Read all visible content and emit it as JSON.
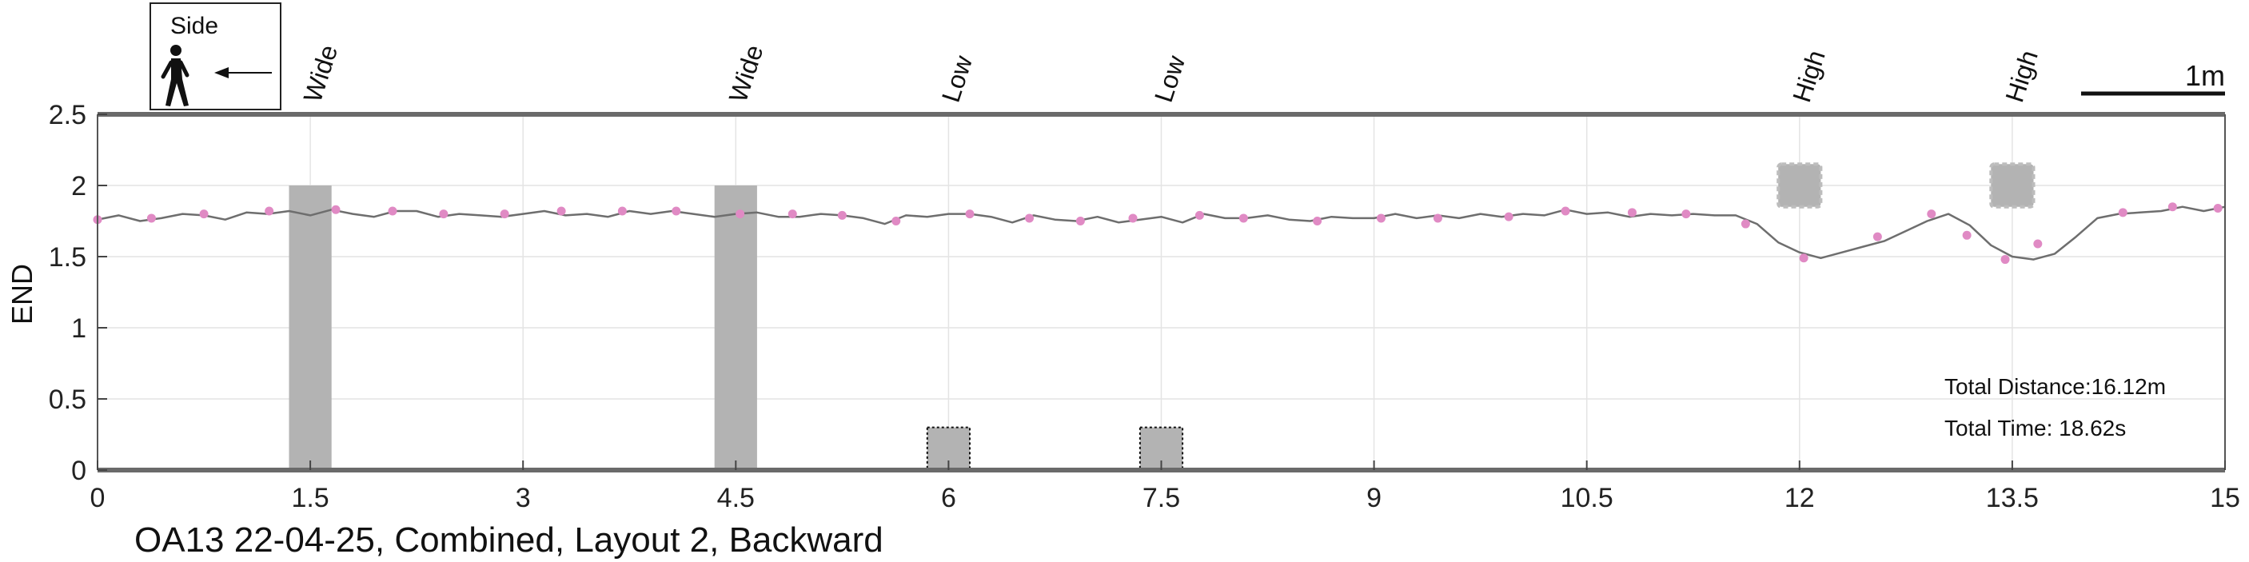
{
  "chart_data": {
    "type": "line",
    "title": "OA13 22-04-25, Combined, Layout 2, Backward",
    "xlabel": "",
    "ylabel": "END",
    "xlim": [
      0,
      15
    ],
    "ylim": [
      0,
      2.5
    ],
    "xticks": [
      0,
      1.5,
      3,
      4.5,
      6,
      7.5,
      9,
      10.5,
      12,
      13.5,
      15
    ],
    "xtick_labels": [
      "0",
      "1.5",
      "3",
      "4.5",
      "6",
      "7.5",
      "9",
      "10.5",
      "12",
      "13.5",
      "15"
    ],
    "yticks": [
      0,
      0.5,
      1,
      1.5,
      2,
      2.5
    ],
    "ytick_labels": [
      "0",
      "0.5",
      "1",
      "1.5",
      "2",
      "2.5"
    ],
    "grid": true,
    "series": [
      {
        "line_color": "#6e6e6e",
        "marker_color": "#e08ac4",
        "x": [
          0,
          0.15,
          0.3,
          0.45,
          0.6,
          0.75,
          0.9,
          1.05,
          1.2,
          1.35,
          1.5,
          1.65,
          1.8,
          1.95,
          2.1,
          2.25,
          2.4,
          2.55,
          2.7,
          2.85,
          3.0,
          3.15,
          3.3,
          3.45,
          3.6,
          3.75,
          3.9,
          4.05,
          4.2,
          4.35,
          4.5,
          4.65,
          4.8,
          4.95,
          5.1,
          5.25,
          5.4,
          5.55,
          5.7,
          5.85,
          6.0,
          6.15,
          6.3,
          6.45,
          6.6,
          6.75,
          6.9,
          7.05,
          7.2,
          7.35,
          7.5,
          7.65,
          7.8,
          7.95,
          8.1,
          8.25,
          8.4,
          8.55,
          8.7,
          8.85,
          9.0,
          9.15,
          9.3,
          9.45,
          9.6,
          9.75,
          9.9,
          10.05,
          10.2,
          10.35,
          10.5,
          10.65,
          10.8,
          10.95,
          11.1,
          11.25,
          11.4,
          11.55,
          11.7,
          11.85,
          12.0,
          12.15,
          12.3,
          12.45,
          12.6,
          12.75,
          12.9,
          13.05,
          13.2,
          13.35,
          13.5,
          13.65,
          13.8,
          13.95,
          14.1,
          14.25,
          14.4,
          14.55,
          14.7,
          14.85,
          15.0
        ],
        "y": [
          1.76,
          1.79,
          1.75,
          1.77,
          1.8,
          1.79,
          1.76,
          1.81,
          1.8,
          1.82,
          1.79,
          1.83,
          1.8,
          1.78,
          1.82,
          1.82,
          1.78,
          1.8,
          1.79,
          1.78,
          1.8,
          1.82,
          1.79,
          1.8,
          1.78,
          1.82,
          1.8,
          1.82,
          1.8,
          1.78,
          1.8,
          1.81,
          1.78,
          1.78,
          1.8,
          1.79,
          1.77,
          1.73,
          1.79,
          1.78,
          1.8,
          1.8,
          1.78,
          1.74,
          1.79,
          1.76,
          1.75,
          1.78,
          1.74,
          1.76,
          1.78,
          1.74,
          1.8,
          1.77,
          1.77,
          1.79,
          1.76,
          1.75,
          1.78,
          1.77,
          1.77,
          1.8,
          1.77,
          1.79,
          1.77,
          1.8,
          1.78,
          1.8,
          1.79,
          1.83,
          1.8,
          1.81,
          1.78,
          1.8,
          1.79,
          1.8,
          1.79,
          1.79,
          1.73,
          1.6,
          1.53,
          1.49,
          1.53,
          1.57,
          1.61,
          1.68,
          1.75,
          1.8,
          1.72,
          1.58,
          1.5,
          1.48,
          1.52,
          1.64,
          1.77,
          1.8,
          1.81,
          1.82,
          1.85,
          1.82,
          1.85
        ]
      }
    ],
    "marker_x": [
      0.0,
      0.38,
      0.75,
      1.21,
      1.68,
      2.08,
      2.44,
      2.87,
      3.27,
      3.7,
      4.08,
      4.53,
      4.9,
      5.25,
      5.63,
      6.15,
      6.57,
      6.93,
      7.3,
      7.77,
      8.08,
      8.6,
      9.05,
      9.45,
      9.95,
      10.35,
      10.82,
      11.2,
      11.62,
      12.03,
      12.55,
      12.93,
      13.18,
      13.45,
      13.68,
      14.28,
      14.63,
      14.95
    ],
    "marker_y": [
      1.76,
      1.77,
      1.8,
      1.82,
      1.83,
      1.82,
      1.8,
      1.8,
      1.82,
      1.82,
      1.82,
      1.8,
      1.8,
      1.79,
      1.75,
      1.8,
      1.77,
      1.75,
      1.77,
      1.79,
      1.77,
      1.75,
      1.77,
      1.77,
      1.78,
      1.82,
      1.81,
      1.8,
      1.73,
      1.49,
      1.64,
      1.8,
      1.65,
      1.48,
      1.59,
      1.81,
      1.85,
      1.84
    ],
    "obstacles": [
      {
        "label": "Wide",
        "x": 1.5,
        "x0": 1.35,
        "x1": 1.65,
        "y0": 0,
        "y1": 2.0,
        "style": "solid"
      },
      {
        "label": "Wide",
        "x": 4.5,
        "x0": 4.35,
        "x1": 4.65,
        "y0": 0,
        "y1": 2.0,
        "style": "solid"
      },
      {
        "label": "Low",
        "x": 6.0,
        "x0": 5.85,
        "x1": 6.15,
        "y0": 0,
        "y1": 0.3,
        "style": "dotted"
      },
      {
        "label": "Low",
        "x": 7.5,
        "x0": 7.35,
        "x1": 7.65,
        "y0": 0,
        "y1": 0.3,
        "style": "dotted"
      },
      {
        "label": "High",
        "x": 12.0,
        "x0": 11.85,
        "x1": 12.15,
        "y0": 1.85,
        "y1": 2.15,
        "style": "scalloped"
      },
      {
        "label": "High",
        "x": 13.5,
        "x0": 13.35,
        "x1": 13.65,
        "y0": 1.85,
        "y1": 2.15,
        "style": "scalloped"
      }
    ],
    "annotations": {
      "total_distance": "Total Distance:16.12m",
      "total_time": "Total Time: 18.62s"
    },
    "legend": {
      "label": "Side",
      "icon": "walking-person-icon",
      "arrow": "left-arrow-icon"
    },
    "scale_bar": {
      "label": "1m",
      "length_m": 1
    }
  }
}
